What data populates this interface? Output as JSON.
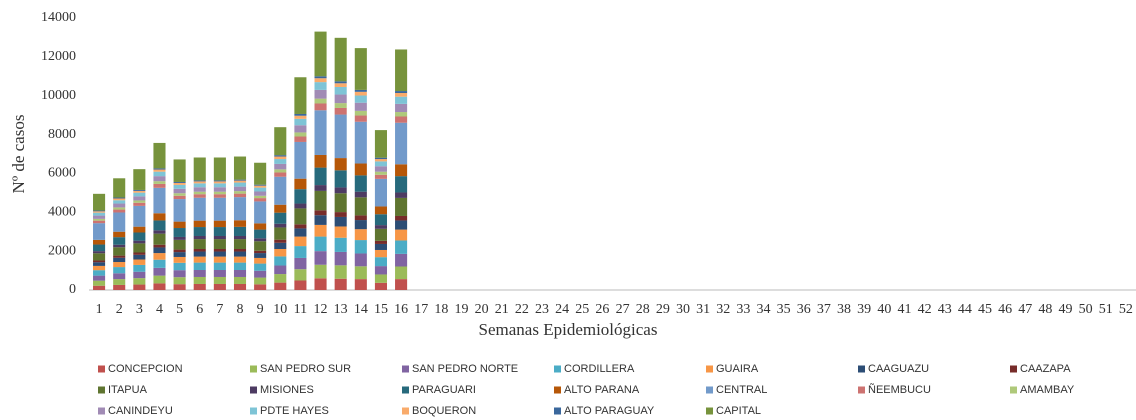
{
  "chart_data": {
    "type": "stacked_bar",
    "x_label": "Semanas Epidemiológicas",
    "y_label": "Nº de casos",
    "categories": [
      1,
      2,
      3,
      4,
      5,
      6,
      7,
      8,
      9,
      10,
      11,
      12,
      13,
      14,
      15,
      16,
      17,
      18,
      19,
      20,
      21,
      22,
      23,
      24,
      25,
      26,
      27,
      28,
      29,
      30,
      31,
      32,
      33,
      34,
      35,
      36,
      37,
      38,
      39,
      40,
      41,
      42,
      43,
      44,
      45,
      46,
      47,
      48,
      49,
      50,
      51,
      52
    ],
    "ylim": [
      0,
      14000
    ],
    "yticks": [
      0,
      2000,
      4000,
      6000,
      8000,
      10000,
      12000,
      14000
    ],
    "grid": false,
    "legend": "bottom",
    "series": [
      {
        "name": "CONCEPCION",
        "color": "#c0504d",
        "values": [
          220,
          260,
          280,
          340,
          300,
          310,
          310,
          310,
          290,
          380,
          490,
          600,
          580,
          560,
          370,
          560,
          null,
          null,
          null,
          null,
          null,
          null,
          null,
          null,
          null,
          null,
          null,
          null,
          null,
          null,
          null,
          null,
          null,
          null,
          null,
          null,
          null,
          null,
          null,
          null,
          null,
          null,
          null,
          null,
          null,
          null,
          null,
          null,
          null,
          null,
          null,
          null
        ]
      },
      {
        "name": "SAN PEDRO SUR",
        "color": "#9bbb59",
        "values": [
          260,
          300,
          330,
          400,
          360,
          360,
          360,
          360,
          350,
          440,
          580,
          700,
          690,
          660,
          430,
          650,
          null,
          null,
          null,
          null,
          null,
          null,
          null,
          null,
          null,
          null,
          null,
          null,
          null,
          null,
          null,
          null,
          null,
          null,
          null,
          null,
          null,
          null,
          null,
          null,
          null,
          null,
          null,
          null,
          null,
          null,
          null,
          null,
          null,
          null,
          null,
          null
        ]
      },
      {
        "name": "SAN PEDRO NORTE",
        "color": "#8064a2",
        "values": [
          260,
          300,
          330,
          400,
          360,
          360,
          360,
          360,
          350,
          440,
          580,
          700,
          690,
          660,
          430,
          650,
          null,
          null,
          null,
          null,
          null,
          null,
          null,
          null,
          null,
          null,
          null,
          null,
          null,
          null,
          null,
          null,
          null,
          null,
          null,
          null,
          null,
          null,
          null,
          null,
          null,
          null,
          null,
          null,
          null,
          null,
          null,
          null,
          null,
          null,
          null,
          null
        ]
      },
      {
        "name": "CORDILLERA",
        "color": "#4bacc6",
        "values": [
          280,
          320,
          350,
          420,
          380,
          380,
          380,
          380,
          370,
          470,
          610,
          750,
          730,
          690,
          460,
          690,
          null,
          null,
          null,
          null,
          null,
          null,
          null,
          null,
          null,
          null,
          null,
          null,
          null,
          null,
          null,
          null,
          null,
          null,
          null,
          null,
          null,
          null,
          null,
          null,
          null,
          null,
          null,
          null,
          null,
          null,
          null,
          null,
          null,
          null,
          null,
          null
        ]
      },
      {
        "name": "GUAIRA",
        "color": "#f79646",
        "values": [
          220,
          260,
          280,
          340,
          300,
          310,
          310,
          310,
          290,
          380,
          490,
          600,
          580,
          560,
          370,
          560,
          null,
          null,
          null,
          null,
          null,
          null,
          null,
          null,
          null,
          null,
          null,
          null,
          null,
          null,
          null,
          null,
          null,
          null,
          null,
          null,
          null,
          null,
          null,
          null,
          null,
          null,
          null,
          null,
          null,
          null,
          null,
          null,
          null,
          null,
          null,
          null
        ]
      },
      {
        "name": "CAAGUAZU",
        "color": "#2c4d75",
        "values": [
          190,
          220,
          240,
          290,
          250,
          260,
          260,
          260,
          250,
          320,
          420,
          500,
          490,
          470,
          310,
          470,
          null,
          null,
          null,
          null,
          null,
          null,
          null,
          null,
          null,
          null,
          null,
          null,
          null,
          null,
          null,
          null,
          null,
          null,
          null,
          null,
          null,
          null,
          null,
          null,
          null,
          null,
          null,
          null,
          null,
          null,
          null,
          null,
          null,
          null,
          null,
          null
        ]
      },
      {
        "name": "CAAZAPA",
        "color": "#772c2a",
        "values": [
          90,
          110,
          120,
          140,
          130,
          130,
          130,
          130,
          120,
          160,
          210,
          250,
          250,
          240,
          160,
          230,
          null,
          null,
          null,
          null,
          null,
          null,
          null,
          null,
          null,
          null,
          null,
          null,
          null,
          null,
          null,
          null,
          null,
          null,
          null,
          null,
          null,
          null,
          null,
          null,
          null,
          null,
          null,
          null,
          null,
          null,
          null,
          null,
          null,
          null,
          null,
          null
        ]
      },
      {
        "name": "ITAPUA",
        "color": "#5f7530",
        "values": [
          370,
          430,
          470,
          570,
          500,
          510,
          510,
          510,
          490,
          630,
          820,
          1000,
          970,
          930,
          620,
          930,
          null,
          null,
          null,
          null,
          null,
          null,
          null,
          null,
          null,
          null,
          null,
          null,
          null,
          null,
          null,
          null,
          null,
          null,
          null,
          null,
          null,
          null,
          null,
          null,
          null,
          null,
          null,
          null,
          null,
          null,
          null,
          null,
          null,
          null,
          null,
          null
        ]
      },
      {
        "name": "MISIONES",
        "color": "#4d3b62",
        "values": [
          110,
          130,
          140,
          170,
          150,
          160,
          160,
          160,
          150,
          190,
          250,
          300,
          300,
          290,
          190,
          280,
          null,
          null,
          null,
          null,
          null,
          null,
          null,
          null,
          null,
          null,
          null,
          null,
          null,
          null,
          null,
          null,
          null,
          null,
          null,
          null,
          null,
          null,
          null,
          null,
          null,
          null,
          null,
          null,
          null,
          null,
          null,
          null,
          null,
          null,
          null,
          null
        ]
      },
      {
        "name": "PARAGUARI",
        "color": "#276a7c",
        "values": [
          340,
          390,
          420,
          510,
          460,
          460,
          460,
          470,
          450,
          570,
          740,
          900,
          880,
          840,
          560,
          840,
          null,
          null,
          null,
          null,
          null,
          null,
          null,
          null,
          null,
          null,
          null,
          null,
          null,
          null,
          null,
          null,
          null,
          null,
          null,
          null,
          null,
          null,
          null,
          null,
          null,
          null,
          null,
          null,
          null,
          null,
          null,
          null,
          null,
          null,
          null,
          null
        ]
      },
      {
        "name": "ALTO PARANA",
        "color": "#b65708",
        "values": [
          240,
          280,
          300,
          370,
          330,
          330,
          330,
          340,
          320,
          410,
          540,
          650,
          630,
          610,
          400,
          610,
          null,
          null,
          null,
          null,
          null,
          null,
          null,
          null,
          null,
          null,
          null,
          null,
          null,
          null,
          null,
          null,
          null,
          null,
          null,
          null,
          null,
          null,
          null,
          null,
          null,
          null,
          null,
          null,
          null,
          null,
          null,
          null,
          null,
          null,
          null,
          null
        ]
      },
      {
        "name": "CENTRAL",
        "color": "#729aca",
        "values": [
          860,
          990,
          1070,
          1310,
          1160,
          1180,
          1180,
          1190,
          1130,
          1440,
          1890,
          2300,
          2240,
          2150,
          1420,
          2140,
          null,
          null,
          null,
          null,
          null,
          null,
          null,
          null,
          null,
          null,
          null,
          null,
          null,
          null,
          null,
          null,
          null,
          null,
          null,
          null,
          null,
          null,
          null,
          null,
          null,
          null,
          null,
          null,
          null,
          null,
          null,
          null,
          null,
          null,
          null,
          null
        ]
      },
      {
        "name": "ÑEEMBUCU",
        "color": "#cd7371",
        "values": [
          130,
          150,
          160,
          200,
          170,
          180,
          180,
          180,
          170,
          220,
          280,
          350,
          340,
          320,
          210,
          320,
          null,
          null,
          null,
          null,
          null,
          null,
          null,
          null,
          null,
          null,
          null,
          null,
          null,
          null,
          null,
          null,
          null,
          null,
          null,
          null,
          null,
          null,
          null,
          null,
          null,
          null,
          null,
          null,
          null,
          null,
          null,
          null,
          null,
          null,
          null,
          null
        ]
      },
      {
        "name": "AMAMBAY",
        "color": "#afc97a",
        "values": [
          90,
          110,
          120,
          140,
          130,
          130,
          130,
          130,
          120,
          160,
          210,
          250,
          250,
          240,
          160,
          230,
          null,
          null,
          null,
          null,
          null,
          null,
          null,
          null,
          null,
          null,
          null,
          null,
          null,
          null,
          null,
          null,
          null,
          null,
          null,
          null,
          null,
          null,
          null,
          null,
          null,
          null,
          null,
          null,
          null,
          null,
          null,
          null,
          null,
          null,
          null,
          null
        ]
      },
      {
        "name": "CANINDEYU",
        "color": "#a18bb5",
        "values": [
          170,
          200,
          210,
          260,
          230,
          230,
          230,
          230,
          220,
          280,
          370,
          450,
          440,
          420,
          280,
          420,
          null,
          null,
          null,
          null,
          null,
          null,
          null,
          null,
          null,
          null,
          null,
          null,
          null,
          null,
          null,
          null,
          null,
          null,
          null,
          null,
          null,
          null,
          null,
          null,
          null,
          null,
          null,
          null,
          null,
          null,
          null,
          null,
          null,
          null,
          null,
          null
        ]
      },
      {
        "name": "PDTE HAYES",
        "color": "#7ec4d6",
        "values": [
          150,
          170,
          190,
          230,
          200,
          200,
          200,
          210,
          200,
          250,
          330,
          400,
          390,
          370,
          250,
          370,
          null,
          null,
          null,
          null,
          null,
          null,
          null,
          null,
          null,
          null,
          null,
          null,
          null,
          null,
          null,
          null,
          null,
          null,
          null,
          null,
          null,
          null,
          null,
          null,
          null,
          null,
          null,
          null,
          null,
          null,
          null,
          null,
          null,
          null,
          null,
          null
        ]
      },
      {
        "name": "BOQUERON",
        "color": "#f9ab6b",
        "values": [
          70,
          90,
          90,
          110,
          100,
          100,
          100,
          100,
          100,
          130,
          160,
          200,
          190,
          190,
          120,
          190,
          null,
          null,
          null,
          null,
          null,
          null,
          null,
          null,
          null,
          null,
          null,
          null,
          null,
          null,
          null,
          null,
          null,
          null,
          null,
          null,
          null,
          null,
          null,
          null,
          null,
          null,
          null,
          null,
          null,
          null,
          null,
          null,
          null,
          null,
          null,
          null
        ]
      },
      {
        "name": "ALTO PARAGUAY",
        "color": "#3a679c",
        "values": [
          40,
          50,
          50,
          60,
          50,
          50,
          50,
          50,
          50,
          70,
          90,
          100,
          100,
          100,
          70,
          100,
          null,
          null,
          null,
          null,
          null,
          null,
          null,
          null,
          null,
          null,
          null,
          null,
          null,
          null,
          null,
          null,
          null,
          null,
          null,
          null,
          null,
          null,
          null,
          null,
          null,
          null,
          null,
          null,
          null,
          null,
          null,
          null,
          null,
          null,
          null,
          null
        ]
      },
      {
        "name": "CAPITAL",
        "color": "#77933c",
        "values": [
          860,
          990,
          1070,
          1310,
          1160,
          1180,
          1180,
          1190,
          1130,
          1440,
          1890,
          2300,
          2240,
          2150,
          1420,
          2140,
          null,
          null,
          null,
          null,
          null,
          null,
          null,
          null,
          null,
          null,
          null,
          null,
          null,
          null,
          null,
          null,
          null,
          null,
          null,
          null,
          null,
          null,
          null,
          null,
          null,
          null,
          null,
          null,
          null,
          null,
          null,
          null,
          null,
          null,
          null,
          null
        ]
      }
    ]
  }
}
